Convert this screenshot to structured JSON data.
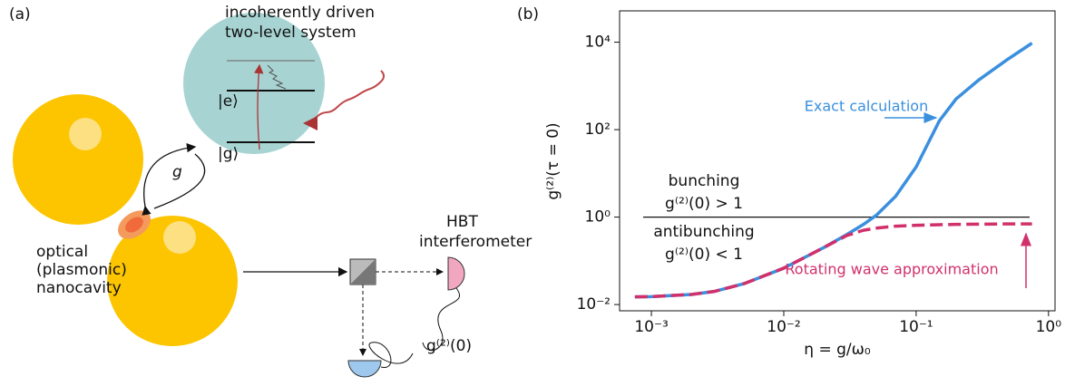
{
  "diagram": {
    "panel_label": "(a)",
    "emitter_title": [
      "incoherently driven",
      "two-level system"
    ],
    "excited_state": "|e⟩",
    "ground_state": "|g⟩",
    "coupling": "g",
    "cavity_label": [
      "optical",
      "(plasmonic)",
      "nanocavity"
    ],
    "hbt_label": [
      "HBT",
      "interferometer"
    ],
    "correlation_label": "g⁽²⁾(0)"
  },
  "chart_data": {
    "type": "line",
    "panel_label": "(b)",
    "x_label": "η = g/ω₀",
    "y_label": "g⁽²⁾(τ = 0)",
    "log_x": true,
    "log_y": true,
    "xlim": [
      0.000575,
      1.12
    ],
    "ylim": [
      0.0072,
      52000
    ],
    "xticks": [
      {
        "value": 0.001,
        "label": "10⁻³"
      },
      {
        "value": 0.01,
        "label": "10⁻²"
      },
      {
        "value": 0.1,
        "label": "10⁻¹"
      },
      {
        "value": 1,
        "label": "10⁰"
      }
    ],
    "yticks": [
      {
        "value": 0.01,
        "label": "10⁻²"
      },
      {
        "value": 1,
        "label": "10⁰"
      },
      {
        "value": 100,
        "label": "10²"
      },
      {
        "value": 10000,
        "label": "10⁴"
      }
    ],
    "reference_line": 1,
    "x": [
      0.00075,
      0.001,
      0.002,
      0.003,
      0.005,
      0.01,
      0.02,
      0.03,
      0.04,
      0.05,
      0.07,
      0.1,
      0.15,
      0.2,
      0.3,
      0.5,
      0.75
    ],
    "series": [
      {
        "name": "Exact calculation",
        "color": "#3a8fde",
        "dashed": false,
        "values": [
          0.015,
          0.0152,
          0.017,
          0.02,
          0.03,
          0.068,
          0.2,
          0.4,
          0.68,
          1.1,
          3,
          14,
          160,
          500,
          1400,
          4200,
          9500
        ]
      },
      {
        "name": "Rotating wave approximation",
        "color": "#d1306b",
        "dashed": true,
        "values": [
          0.015,
          0.0152,
          0.017,
          0.02,
          0.03,
          0.068,
          0.2,
          0.38,
          0.5,
          0.56,
          0.62,
          0.65,
          0.67,
          0.68,
          0.69,
          0.7,
          0.7
        ]
      }
    ],
    "annotations": {
      "above": [
        "bunching",
        "g⁽²⁾(0) > 1"
      ],
      "below": [
        "antibunching",
        "g⁽²⁾(0) < 1"
      ]
    }
  }
}
